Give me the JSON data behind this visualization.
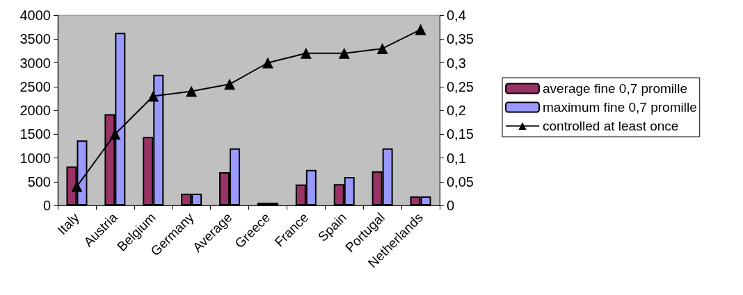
{
  "chart_data": {
    "type": "bar",
    "categories": [
      "Italy",
      "Austria",
      "Belgium",
      "Germany",
      "Average",
      "Greece",
      "France",
      "Spain",
      "Portugal",
      "Netherlands"
    ],
    "series": [
      {
        "name": "average fine 0,7 promille",
        "color": "#993366",
        "values": [
          820,
          1920,
          1440,
          250,
          700,
          60,
          440,
          450,
          720,
          190
        ]
      },
      {
        "name": "maximum fine 0,7 promille",
        "color": "#9999ff",
        "values": [
          1370,
          3630,
          2750,
          250,
          1200,
          60,
          750,
          600,
          1200,
          190
        ]
      },
      {
        "name": "controlled at least once",
        "type": "line",
        "axis": "y2",
        "color": "#000000",
        "marker": "triangle",
        "values": [
          0.04,
          0.15,
          0.23,
          0.24,
          0.255,
          0.3,
          0.32,
          0.32,
          0.33,
          0.37
        ]
      }
    ],
    "ylim": [
      0,
      4000
    ],
    "yticks": [
      0,
      500,
      1000,
      1500,
      2000,
      2500,
      3000,
      3500,
      4000
    ],
    "y2lim": [
      0,
      0.4
    ],
    "y2ticks": [
      0,
      {
        "value": 0.05,
        "label": "0,05"
      },
      {
        "value": 0.1,
        "label": "0,1"
      },
      {
        "value": 0.15,
        "label": "0,15"
      },
      {
        "value": 0.2,
        "label": "0,2"
      },
      {
        "value": 0.25,
        "label": "0,25"
      },
      {
        "value": 0.3,
        "label": "0,3"
      },
      {
        "value": 0.35,
        "label": "0,35"
      },
      {
        "value": 0.4,
        "label": "0,4"
      }
    ],
    "grid": false,
    "legend": "right"
  }
}
